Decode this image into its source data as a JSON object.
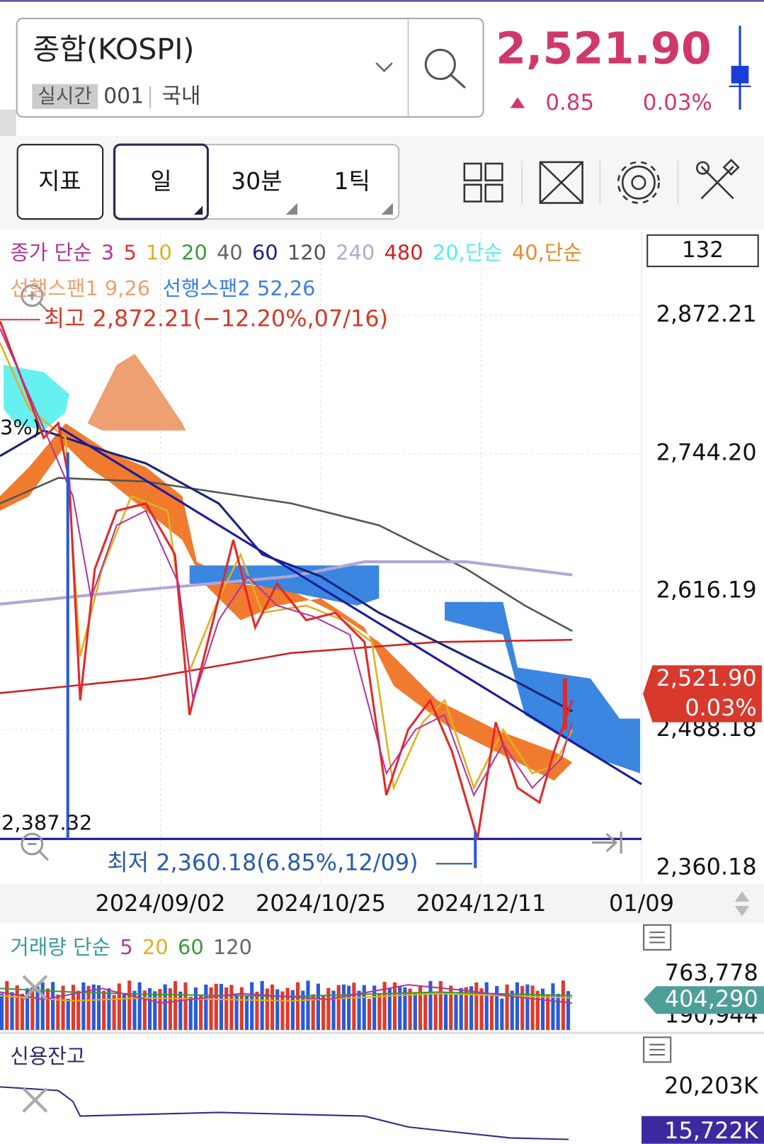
{
  "header": {
    "symbol": "종합(KOSPI)",
    "tag": "실시간",
    "code": "001",
    "market": "국내",
    "price": "2,521.90",
    "change": "0.85",
    "change_pct": "0.03%"
  },
  "toolbar": {
    "indicator": "지표",
    "periods": [
      "일",
      "30분",
      "1틱"
    ]
  },
  "chart": {
    "legend_ma": [
      "종가 단순",
      "3",
      "5",
      "10",
      "20",
      "40",
      "60",
      "120",
      "240",
      "480",
      "20,단순",
      "40,단순"
    ],
    "legend_cloud": [
      "선행스팬1 9,26",
      "선행스팬2 52,26"
    ],
    "count": "132",
    "high_label": "최고 2,872.21(−12.20%,07/16)",
    "low_label": "최저 2,360.18(6.85%,12/09)",
    "left_label": "3%)",
    "left_price": "2,387.32",
    "price_axis": [
      "2,872.21",
      "2,744.20",
      "2,616.19",
      "2,488.18",
      "2,360.18"
    ],
    "current_price": "2,521.90",
    "current_pct": "0.03%",
    "dates": [
      "2024/09/02",
      "2024/10/25",
      "2024/12/11",
      "01/09"
    ]
  },
  "volume": {
    "legend": [
      "거래량 단순",
      "5",
      "20",
      "60",
      "120"
    ],
    "axis": [
      "763,778",
      "190,944"
    ],
    "current": "404,290"
  },
  "credit": {
    "title": "신용잔고",
    "axis": [
      "20,203K"
    ],
    "current": "15,722K"
  }
}
